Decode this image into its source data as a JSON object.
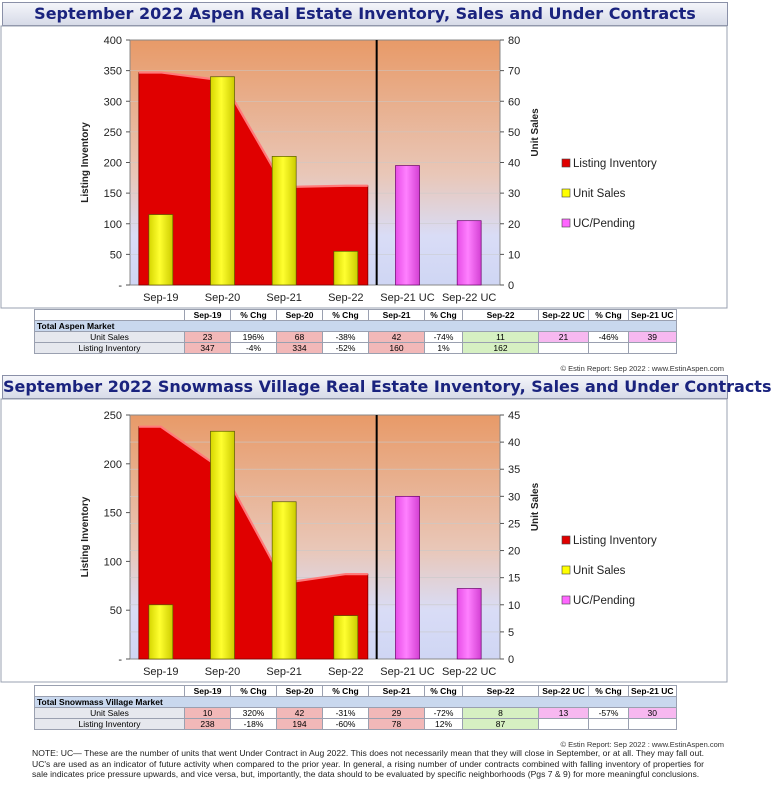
{
  "charts": [
    {
      "title": "September 2022 Aspen Real Estate Inventory, Sales and Under Contracts",
      "ylabel_left": "Listing Inventory",
      "ylabel_right": "Unit Sales",
      "left_ticks": [
        "400",
        "350",
        "300",
        "250",
        "200",
        "150",
        "100",
        "50",
        "-"
      ],
      "right_ticks": [
        "80",
        "70",
        "60",
        "50",
        "40",
        "30",
        "20",
        "10",
        "0"
      ],
      "categories": [
        "Sep-19",
        "Sep-20",
        "Sep-21",
        "Sep-22",
        "Sep-21 UC",
        "Sep-22 UC"
      ],
      "legend": [
        "Listing Inventory",
        "Unit Sales",
        "UC/Pending"
      ],
      "table": {
        "headers": [
          "Sep-19",
          "% Chg",
          "Sep-20",
          "% Chg",
          "Sep-21",
          "% Chg",
          "Sep-22",
          "Sep-22 UC",
          "% Chg",
          "Sep-21 UC"
        ],
        "section": "Total Aspen Market",
        "rows": [
          {
            "label": "Unit Sales",
            "cells": [
              "23",
              "196%",
              "68",
              "-38%",
              "42",
              "-74%",
              "11",
              "21",
              "-46%",
              "39"
            ]
          },
          {
            "label": "Listing Inventory",
            "cells": [
              "347",
              "-4%",
              "334",
              "-52%",
              "160",
              "1%",
              "162",
              "",
              "",
              ""
            ]
          }
        ]
      },
      "copyright": "© Estin Report: Sep 2022 : www.EstinAspen.com"
    },
    {
      "title": "September 2022 Snowmass Village Real Estate Inventory, Sales and Under Contracts",
      "ylabel_left": "Listing Inventory",
      "ylabel_right": "Unit Sales",
      "left_ticks": [
        "250",
        "200",
        "150",
        "100",
        "50",
        "-"
      ],
      "right_ticks": [
        "45",
        "40",
        "35",
        "30",
        "25",
        "20",
        "15",
        "10",
        "5",
        "0"
      ],
      "categories": [
        "Sep-19",
        "Sep-20",
        "Sep-21",
        "Sep-22",
        "Sep-21 UC",
        "Sep-22 UC"
      ],
      "legend": [
        "Listing Inventory",
        "Unit Sales",
        "UC/Pending"
      ],
      "table": {
        "headers": [
          "Sep-19",
          "% Chg",
          "Sep-20",
          "% Chg",
          "Sep-21",
          "% Chg",
          "Sep-22",
          "Sep-22 UC",
          "% Chg",
          "Sep-21 UC"
        ],
        "section": "Total Snowmass Village Market",
        "rows": [
          {
            "label": "Unit Sales",
            "cells": [
              "10",
              "320%",
              "42",
              "-31%",
              "29",
              "-72%",
              "8",
              "13",
              "-57%",
              "30"
            ]
          },
          {
            "label": "Listing Inventory",
            "cells": [
              "238",
              "-18%",
              "194",
              "-60%",
              "78",
              "12%",
              "87",
              "",
              "",
              ""
            ]
          }
        ]
      },
      "copyright": "© Estin Report: Sep 2022 : www.EstinAspen.com"
    }
  ],
  "note": "NOTE: UC— These are the number of units that went Under Contract in Aug 2022. This does not necessarily mean that they will close in September, or at all. They may fall out. UC's are used as an indicator of future activity when compared to the prior year. In general, a rising number of under contracts combined with falling inventory of properties for sale indicates price pressure upwards, and vice versa, but, importantly, the data should to be evaluated by specific neighborhoods (Pgs 7 & 9) for more meaningful conclusions.",
  "colors": {
    "inventory": "#e00000",
    "sales": "#ffff00",
    "uc": "#ff66ff"
  },
  "chart_data": [
    {
      "type": "bar",
      "title": "September 2022 Aspen Real Estate Inventory, Sales and Under Contracts",
      "categories": [
        "Sep-19",
        "Sep-20",
        "Sep-21",
        "Sep-22",
        "Sep-21 UC",
        "Sep-22 UC"
      ],
      "ylabel": "Listing Inventory",
      "y2label": "Unit Sales",
      "ylim": [
        0,
        400
      ],
      "y2lim": [
        0,
        80
      ],
      "series": [
        {
          "name": "Listing Inventory",
          "kind": "area",
          "axis": "left",
          "values": [
            347,
            334,
            160,
            162,
            null,
            null
          ]
        },
        {
          "name": "Unit Sales",
          "kind": "bar",
          "axis": "right",
          "values": [
            23,
            68,
            42,
            11,
            null,
            null
          ]
        },
        {
          "name": "UC/Pending",
          "kind": "bar",
          "axis": "right",
          "values": [
            null,
            null,
            null,
            null,
            39,
            21
          ]
        }
      ]
    },
    {
      "type": "bar",
      "title": "September 2022 Snowmass Village Real Estate Inventory, Sales and Under Contracts",
      "categories": [
        "Sep-19",
        "Sep-20",
        "Sep-21",
        "Sep-22",
        "Sep-21 UC",
        "Sep-22 UC"
      ],
      "ylabel": "Listing Inventory",
      "y2label": "Unit Sales",
      "ylim": [
        0,
        250
      ],
      "y2lim": [
        0,
        45
      ],
      "series": [
        {
          "name": "Listing Inventory",
          "kind": "area",
          "axis": "left",
          "values": [
            238,
            194,
            78,
            87,
            null,
            null
          ]
        },
        {
          "name": "Unit Sales",
          "kind": "bar",
          "axis": "right",
          "values": [
            10,
            42,
            29,
            8,
            null,
            null
          ]
        },
        {
          "name": "UC/Pending",
          "kind": "bar",
          "axis": "right",
          "values": [
            null,
            null,
            null,
            null,
            30,
            13
          ]
        }
      ]
    }
  ]
}
